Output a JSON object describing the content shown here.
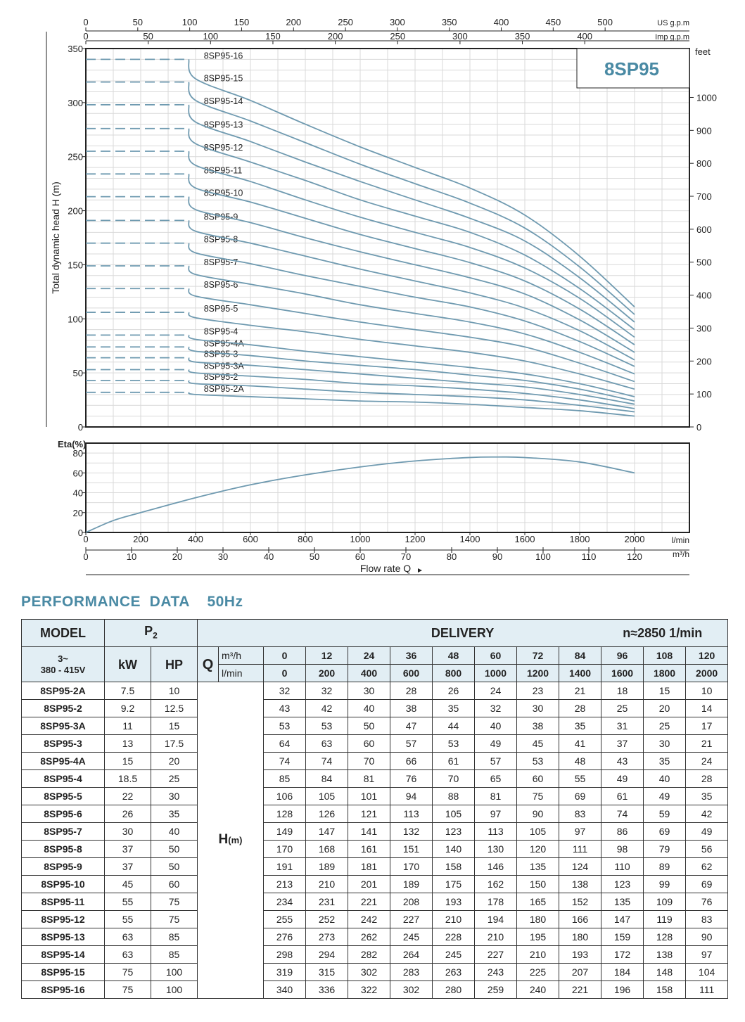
{
  "chart_data": [
    {
      "type": "line",
      "title": "8SP95",
      "x": [
        0,
        200,
        400,
        600,
        800,
        1000,
        1200,
        1400,
        1600,
        1800,
        2000
      ],
      "xlabel": "Flow rate Q",
      "xunit": "l/min",
      "xlim": [
        0,
        2200
      ],
      "xticks": [
        0,
        200,
        400,
        600,
        800,
        1000,
        1200,
        1400,
        1600,
        1800,
        2000
      ],
      "x2_unit": "m³/h",
      "x2_ticks": [
        0,
        10,
        20,
        30,
        40,
        50,
        60,
        70,
        80,
        90,
        100,
        110,
        120
      ],
      "top_axis_1_unit": "US g.p.m",
      "top_axis_1_ticks": [
        0,
        50,
        100,
        150,
        200,
        250,
        300,
        350,
        400,
        450,
        500
      ],
      "top_axis_2_unit": "Imp g.p.m",
      "top_axis_2_ticks": [
        0,
        50,
        100,
        150,
        200,
        250,
        300,
        350,
        400
      ],
      "ylabel": "Total dynamic head H (m)",
      "ylim": [
        0,
        350
      ],
      "yticks": [
        0,
        50,
        100,
        150,
        200,
        250,
        300,
        350
      ],
      "y2_unit": "feet",
      "y2_ticks": [
        0,
        100,
        200,
        300,
        400,
        500,
        600,
        700,
        800,
        900,
        1000
      ],
      "grid": true,
      "series": [
        {
          "name": "8SP95-2A",
          "values": [
            32,
            32,
            30,
            28,
            26,
            24,
            23,
            21,
            18,
            15,
            10
          ]
        },
        {
          "name": "8SP95-2",
          "values": [
            43,
            42,
            40,
            38,
            35,
            32,
            30,
            28,
            25,
            20,
            14
          ]
        },
        {
          "name": "8SP95-3A",
          "values": [
            53,
            53,
            50,
            47,
            44,
            40,
            38,
            35,
            31,
            25,
            17
          ]
        },
        {
          "name": "8SP95-3",
          "values": [
            64,
            63,
            60,
            57,
            53,
            49,
            45,
            41,
            37,
            30,
            21
          ]
        },
        {
          "name": "8SP95-4A",
          "values": [
            74,
            74,
            70,
            66,
            61,
            57,
            53,
            48,
            43,
            35,
            24
          ]
        },
        {
          "name": "8SP95-4",
          "values": [
            85,
            84,
            81,
            76,
            70,
            65,
            60,
            55,
            49,
            40,
            28
          ]
        },
        {
          "name": "8SP95-5",
          "values": [
            106,
            105,
            101,
            94,
            88,
            81,
            75,
            69,
            61,
            49,
            35
          ]
        },
        {
          "name": "8SP95-6",
          "values": [
            128,
            126,
            121,
            113,
            105,
            97,
            90,
            83,
            74,
            59,
            42
          ]
        },
        {
          "name": "8SP95-7",
          "values": [
            149,
            147,
            141,
            132,
            123,
            113,
            105,
            97,
            86,
            69,
            49
          ]
        },
        {
          "name": "8SP95-8",
          "values": [
            170,
            168,
            161,
            151,
            140,
            130,
            120,
            111,
            98,
            79,
            56
          ]
        },
        {
          "name": "8SP95-9",
          "values": [
            191,
            189,
            181,
            170,
            158,
            146,
            135,
            124,
            110,
            89,
            62
          ]
        },
        {
          "name": "8SP95-10",
          "values": [
            213,
            210,
            201,
            189,
            175,
            162,
            150,
            138,
            123,
            99,
            69
          ]
        },
        {
          "name": "8SP95-11",
          "values": [
            234,
            231,
            221,
            208,
            193,
            178,
            165,
            152,
            135,
            109,
            76
          ]
        },
        {
          "name": "8SP95-12",
          "values": [
            255,
            252,
            242,
            227,
            210,
            194,
            180,
            166,
            147,
            119,
            83
          ]
        },
        {
          "name": "8SP95-13",
          "values": [
            276,
            273,
            262,
            245,
            228,
            210,
            195,
            180,
            159,
            128,
            90
          ]
        },
        {
          "name": "8SP95-14",
          "values": [
            298,
            294,
            282,
            264,
            245,
            227,
            210,
            193,
            172,
            138,
            97
          ]
        },
        {
          "name": "8SP95-15",
          "values": [
            319,
            315,
            302,
            283,
            263,
            243,
            225,
            207,
            184,
            148,
            104
          ]
        },
        {
          "name": "8SP95-16",
          "values": [
            340,
            336,
            322,
            302,
            280,
            259,
            240,
            221,
            196,
            158,
            111
          ]
        }
      ]
    },
    {
      "type": "line",
      "ylabel": "Eta(%)",
      "ylim": [
        0,
        80
      ],
      "yticks": [
        0,
        20,
        40,
        60,
        80
      ],
      "xlim": [
        0,
        2200
      ],
      "grid": true,
      "x": [
        0,
        100,
        200,
        400,
        600,
        800,
        1000,
        1200,
        1400,
        1500,
        1600,
        1800,
        2000
      ],
      "values": [
        0,
        12,
        20,
        35,
        48,
        58,
        66,
        72,
        75.5,
        76,
        75.5,
        71,
        60
      ]
    }
  ],
  "logo": "8SP95",
  "table": {
    "heading": "PERFORMANCE  DATA    50Hz",
    "model_label": "MODEL",
    "p2_label": "P",
    "p2_sub": "2",
    "delivery_label": "DELIVERY",
    "speed_label": "n≈2850 1/min",
    "phase_label": "3~",
    "voltage_label": "380 - 415V",
    "kw_label": "kW",
    "hp_label": "HP",
    "q_label": "Q",
    "q_unit_m3": "m³/h",
    "q_unit_l": "l/min",
    "h_label": "H",
    "h_unit": "(m)",
    "q_m3h": [
      "0",
      "12",
      "24",
      "36",
      "48",
      "60",
      "72",
      "84",
      "96",
      "108",
      "120"
    ],
    "q_lmin": [
      "0",
      "200",
      "400",
      "600",
      "800",
      "1000",
      "1200",
      "1400",
      "1600",
      "1800",
      "2000"
    ],
    "rows": [
      {
        "model": "8SP95-2A",
        "kw": "7.5",
        "hp": "10",
        "h": [
          "32",
          "32",
          "30",
          "28",
          "26",
          "24",
          "23",
          "21",
          "18",
          "15",
          "10"
        ]
      },
      {
        "model": "8SP95-2",
        "kw": "9.2",
        "hp": "12.5",
        "h": [
          "43",
          "42",
          "40",
          "38",
          "35",
          "32",
          "30",
          "28",
          "25",
          "20",
          "14"
        ]
      },
      {
        "model": "8SP95-3A",
        "kw": "11",
        "hp": "15",
        "h": [
          "53",
          "53",
          "50",
          "47",
          "44",
          "40",
          "38",
          "35",
          "31",
          "25",
          "17"
        ]
      },
      {
        "model": "8SP95-3",
        "kw": "13",
        "hp": "17.5",
        "h": [
          "64",
          "63",
          "60",
          "57",
          "53",
          "49",
          "45",
          "41",
          "37",
          "30",
          "21"
        ]
      },
      {
        "model": "8SP95-4A",
        "kw": "15",
        "hp": "20",
        "h": [
          "74",
          "74",
          "70",
          "66",
          "61",
          "57",
          "53",
          "48",
          "43",
          "35",
          "24"
        ]
      },
      {
        "model": "8SP95-4",
        "kw": "18.5",
        "hp": "25",
        "h": [
          "85",
          "84",
          "81",
          "76",
          "70",
          "65",
          "60",
          "55",
          "49",
          "40",
          "28"
        ]
      },
      {
        "model": "8SP95-5",
        "kw": "22",
        "hp": "30",
        "h": [
          "106",
          "105",
          "101",
          "94",
          "88",
          "81",
          "75",
          "69",
          "61",
          "49",
          "35"
        ]
      },
      {
        "model": "8SP95-6",
        "kw": "26",
        "hp": "35",
        "h": [
          "128",
          "126",
          "121",
          "113",
          "105",
          "97",
          "90",
          "83",
          "74",
          "59",
          "42"
        ]
      },
      {
        "model": "8SP95-7",
        "kw": "30",
        "hp": "40",
        "h": [
          "149",
          "147",
          "141",
          "132",
          "123",
          "113",
          "105",
          "97",
          "86",
          "69",
          "49"
        ]
      },
      {
        "model": "8SP95-8",
        "kw": "37",
        "hp": "50",
        "h": [
          "170",
          "168",
          "161",
          "151",
          "140",
          "130",
          "120",
          "111",
          "98",
          "79",
          "56"
        ]
      },
      {
        "model": "8SP95-9",
        "kw": "37",
        "hp": "50",
        "h": [
          "191",
          "189",
          "181",
          "170",
          "158",
          "146",
          "135",
          "124",
          "110",
          "89",
          "62"
        ]
      },
      {
        "model": "8SP95-10",
        "kw": "45",
        "hp": "60",
        "h": [
          "213",
          "210",
          "201",
          "189",
          "175",
          "162",
          "150",
          "138",
          "123",
          "99",
          "69"
        ]
      },
      {
        "model": "8SP95-11",
        "kw": "55",
        "hp": "75",
        "h": [
          "234",
          "231",
          "221",
          "208",
          "193",
          "178",
          "165",
          "152",
          "135",
          "109",
          "76"
        ]
      },
      {
        "model": "8SP95-12",
        "kw": "55",
        "hp": "75",
        "h": [
          "255",
          "252",
          "242",
          "227",
          "210",
          "194",
          "180",
          "166",
          "147",
          "119",
          "83"
        ]
      },
      {
        "model": "8SP95-13",
        "kw": "63",
        "hp": "85",
        "h": [
          "276",
          "273",
          "262",
          "245",
          "228",
          "210",
          "195",
          "180",
          "159",
          "128",
          "90"
        ]
      },
      {
        "model": "8SP95-14",
        "kw": "63",
        "hp": "85",
        "h": [
          "298",
          "294",
          "282",
          "264",
          "245",
          "227",
          "210",
          "193",
          "172",
          "138",
          "97"
        ]
      },
      {
        "model": "8SP95-15",
        "kw": "75",
        "hp": "100",
        "h": [
          "319",
          "315",
          "302",
          "283",
          "263",
          "243",
          "225",
          "207",
          "184",
          "148",
          "104"
        ]
      },
      {
        "model": "8SP95-16",
        "kw": "75",
        "hp": "100",
        "h": [
          "340",
          "336",
          "322",
          "302",
          "280",
          "259",
          "240",
          "221",
          "196",
          "158",
          "111"
        ]
      }
    ]
  },
  "colors": {
    "curve": "#6f9ab0",
    "accent": "#4a8aa4",
    "logo_a": "#4a8aa4",
    "logo_b": "#7a6aa8",
    "grid": "#d9d9d9",
    "header_bg": "#e2eef4"
  }
}
